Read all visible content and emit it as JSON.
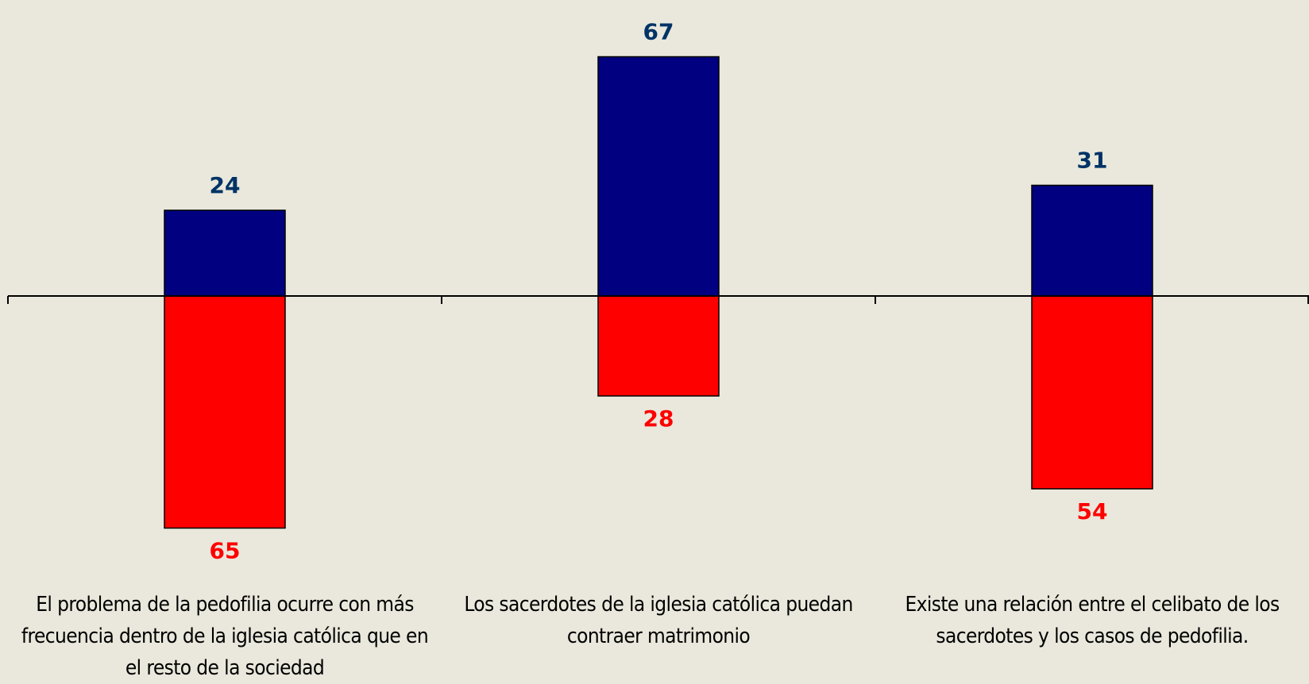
{
  "chart_data": {
    "type": "diverging-bar",
    "categories": [
      "El problema de la pedofilia ocurre con más frecuencia dentro de la iglesia católica que en el resto de la sociedad",
      "Los sacerdotes de la iglesia católica puedan contraer matrimonio",
      "Existe una relación entre el celibato de los sacerdotes y los casos de pedofilia."
    ],
    "series": [
      {
        "color": "#000080",
        "label_color": "#003366",
        "direction": "up",
        "values": [
          24,
          67,
          31
        ]
      },
      {
        "color": "#ff0000",
        "label_color": "#ff0000",
        "direction": "down",
        "values": [
          65,
          28,
          54
        ]
      }
    ]
  }
}
